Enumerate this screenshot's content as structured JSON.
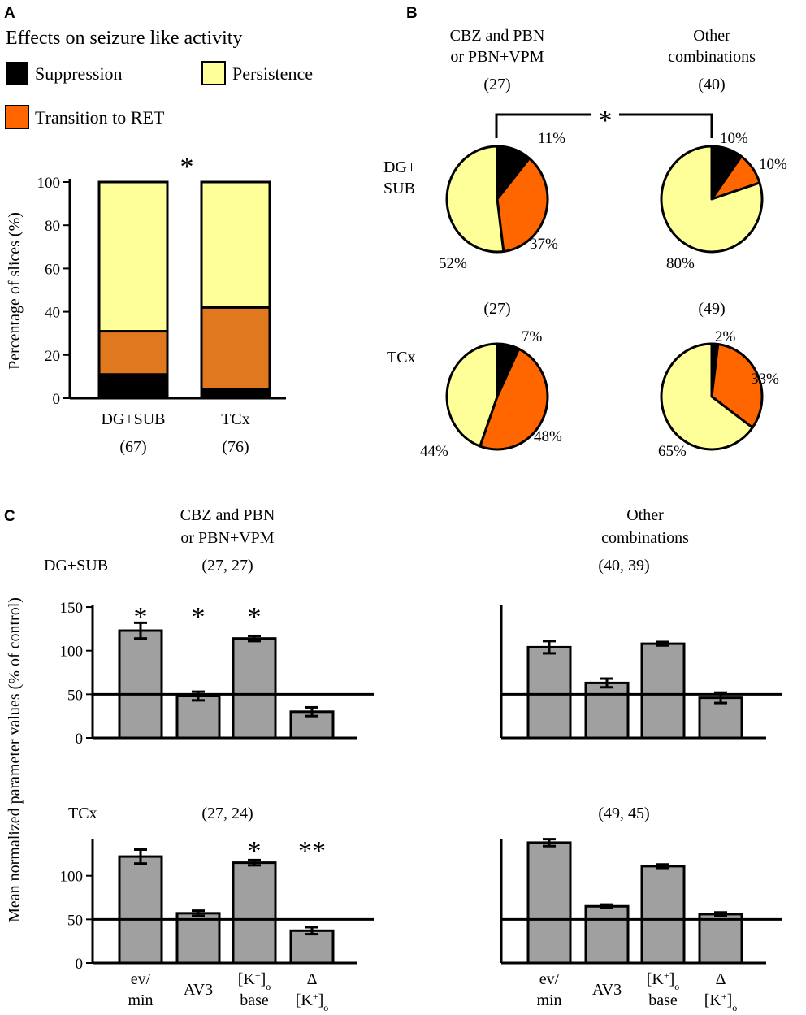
{
  "panels": {
    "a": "A",
    "b": "B",
    "c": "C"
  },
  "legend": {
    "title": "Effects on seizure like activity",
    "items": [
      {
        "label": "Suppression",
        "color": "#000000"
      },
      {
        "label": "Persistence",
        "color": "#ffff99"
      },
      {
        "label": "Transition to RET",
        "color": "#ff6600"
      }
    ]
  },
  "chart_data": [
    {
      "id": "panelA",
      "type": "bar",
      "stacked": true,
      "ylabel": "Percentage of slices (%)",
      "ylim": [
        0,
        100
      ],
      "yticks": [
        0,
        20,
        40,
        60,
        80,
        100
      ],
      "categories": [
        {
          "label": "DG+SUB",
          "n": "(67)"
        },
        {
          "label": "TCx",
          "n": "(76)"
        }
      ],
      "series": [
        {
          "name": "Suppression",
          "color": "#000000",
          "values": [
            11,
            4
          ]
        },
        {
          "name": "Transition to RET",
          "color": "#e07820",
          "values": [
            20,
            38
          ]
        },
        {
          "name": "Persistence",
          "color": "#ffff99",
          "values": [
            69,
            58
          ]
        }
      ],
      "significance": "*"
    },
    {
      "id": "panelB",
      "type": "pie",
      "columns": [
        {
          "line1": "CBZ and PBN",
          "line2": "or PBN+VPM"
        },
        {
          "line1": "Other",
          "line2": "combinations"
        }
      ],
      "rows": [
        "DG+\nSUB",
        "TCx"
      ],
      "significance": "*",
      "pies": [
        {
          "row": "DG+SUB",
          "column": "CBZ and PBN or PBN+VPM",
          "n": "(27)",
          "slices": [
            {
              "name": "Suppression",
              "value": 11,
              "label": "11%",
              "color": "#000000"
            },
            {
              "name": "Transition to RET",
              "value": 37,
              "label": "37%",
              "color": "#ff6600"
            },
            {
              "name": "Persistence",
              "value": 52,
              "label": "52%",
              "color": "#ffff99"
            }
          ]
        },
        {
          "row": "DG+SUB",
          "column": "Other combinations",
          "n": "(40)",
          "slices": [
            {
              "name": "Suppression",
              "value": 10,
              "label": "10%",
              "color": "#000000"
            },
            {
              "name": "Transition to RET",
              "value": 10,
              "label": "10%",
              "color": "#ff6600"
            },
            {
              "name": "Persistence",
              "value": 80,
              "label": "80%",
              "color": "#ffff99"
            }
          ]
        },
        {
          "row": "TCx",
          "column": "CBZ and PBN or PBN+VPM",
          "n": "(27)",
          "slices": [
            {
              "name": "Suppression",
              "value": 7,
              "label": "7%",
              "color": "#000000"
            },
            {
              "name": "Transition to RET",
              "value": 48,
              "label": "48%",
              "color": "#ff6600"
            },
            {
              "name": "Persistence",
              "value": 44,
              "label": "44%",
              "color": "#ffff99"
            }
          ]
        },
        {
          "row": "TCx",
          "column": "Other combinations",
          "n": "(49)",
          "slices": [
            {
              "name": "Suppression",
              "value": 2,
              "label": "2%",
              "color": "#000000"
            },
            {
              "name": "Transition to RET",
              "value": 33,
              "label": "33%",
              "color": "#ff6600"
            },
            {
              "name": "Persistence",
              "value": 65,
              "label": "65%",
              "color": "#ffff99"
            }
          ]
        }
      ]
    },
    {
      "id": "panelC",
      "type": "bar",
      "ylabel": "Mean normalized parameter values (% of control)",
      "reference_line": 50,
      "bar_color": "#a0a0a0",
      "yticks": [
        0,
        50,
        100,
        150
      ],
      "categories": [
        "ev/\nmin",
        "AV3",
        "[K+]o\nbase",
        "Δ\n[K+]o"
      ],
      "columns": [
        {
          "line1": "CBZ and PBN",
          "line2": "or PBN+VPM"
        },
        {
          "line1": "Other",
          "line2": "combinations"
        }
      ],
      "rows": [
        {
          "label": "DG+SUB",
          "ylim": [
            0,
            150
          ],
          "cells": [
            {
              "n": "(27, 27)",
              "values": [
                123,
                48,
                114,
                30
              ],
              "errors": [
                9,
                5,
                3,
                5
              ],
              "stars": [
                "*",
                "*",
                "*",
                ""
              ]
            },
            {
              "n": "(40, 39)",
              "values": [
                104,
                63,
                108,
                46
              ],
              "errors": [
                7,
                5,
                2,
                6
              ],
              "stars": [
                "",
                "",
                "",
                ""
              ]
            }
          ]
        },
        {
          "label": "TCx",
          "ylim": [
            0,
            140
          ],
          "cells": [
            {
              "n": "(27, 24)",
              "values": [
                122,
                57,
                115,
                37
              ],
              "errors": [
                8,
                3,
                3,
                4
              ],
              "stars": [
                "",
                "",
                "*",
                "**"
              ]
            },
            {
              "n": "(49, 45)",
              "values": [
                138,
                65,
                111,
                56
              ],
              "errors": [
                4,
                2,
                2,
                2
              ],
              "stars": [
                "",
                "",
                "",
                ""
              ]
            }
          ]
        }
      ]
    }
  ]
}
